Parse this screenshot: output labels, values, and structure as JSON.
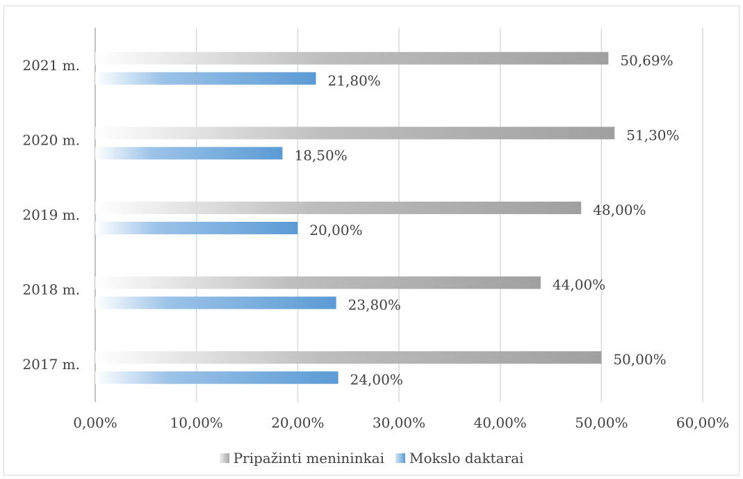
{
  "chart_data": {
    "type": "bar",
    "orientation": "horizontal",
    "categories": [
      "2017 m.",
      "2018 m.",
      "2019 m.",
      "2020 m.",
      "2021 m."
    ],
    "series": [
      {
        "name": "Pripažinti menininkai",
        "values": [
          50.0,
          44.0,
          48.0,
          51.3,
          50.69
        ],
        "labels": [
          "50,00%",
          "44,00%",
          "48,00%",
          "51,30%",
          "50,69%"
        ],
        "color": "#a6a6a6"
      },
      {
        "name": "Mokslo daktarai",
        "values": [
          24.0,
          23.8,
          20.0,
          18.5,
          21.8
        ],
        "labels": [
          "24,00%",
          "23,80%",
          "20,00%",
          "18,50%",
          "21,80%"
        ],
        "color": "#5b9bd5"
      }
    ],
    "xlim": [
      0,
      60
    ],
    "xticks": [
      0,
      10,
      20,
      30,
      40,
      50,
      60
    ],
    "xtick_labels": [
      "0,00%",
      "10,00%",
      "20,00%",
      "30,00%",
      "40,00%",
      "50,00%",
      "60,00%"
    ],
    "grid": "vertical",
    "legend_position": "bottom",
    "title": "",
    "xlabel": "",
    "ylabel": ""
  }
}
